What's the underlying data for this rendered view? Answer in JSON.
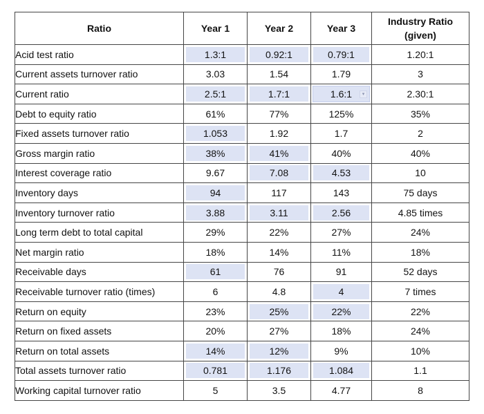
{
  "headers": [
    "Ratio",
    "Year 1",
    "Year 2",
    "Year 3",
    "Industry Ratio (given)"
  ],
  "rows": [
    {
      "name": "Acid test ratio",
      "y1": "1.3:1",
      "y2": "0.92:1",
      "y3": "0.79:1",
      "ind": "1.20:1"
    },
    {
      "name": "Current assets turnover ratio",
      "y1": "3.03",
      "y2": "1.54",
      "y3": "1.79",
      "ind": "3"
    },
    {
      "name": "Current ratio",
      "y1": "2.5:1",
      "y2": "1.7:1",
      "y3": "1.6:1",
      "ind": "2.30:1"
    },
    {
      "name": "Debt to equity ratio",
      "y1": "61%",
      "y2": "77%",
      "y3": "125%",
      "ind": "35%"
    },
    {
      "name": "Fixed assets turnover ratio",
      "y1": "1.053",
      "y2": "1.92",
      "y3": "1.7",
      "ind": "2"
    },
    {
      "name": "Gross margin ratio",
      "y1": "38%",
      "y2": "41%",
      "y3": "40%",
      "ind": "40%"
    },
    {
      "name": "Interest coverage ratio",
      "y1": "9.67",
      "y2": "7.08",
      "y3": "4.53",
      "ind": "10"
    },
    {
      "name": "Inventory days",
      "y1": "94",
      "y2": "117",
      "y3": "143",
      "ind": "75 days"
    },
    {
      "name": "Inventory turnover ratio",
      "y1": "3.88",
      "y2": "3.11",
      "y3": "2.56",
      "ind": "4.85 times"
    },
    {
      "name": "Long term debt to total capital",
      "y1": "29%",
      "y2": "22%",
      "y3": "27%",
      "ind": "24%"
    },
    {
      "name": "Net margin ratio",
      "y1": "18%",
      "y2": "14%",
      "y3": "11%",
      "ind": "18%"
    },
    {
      "name": "Receivable days",
      "y1": "61",
      "y2": "76",
      "y3": "91",
      "ind": "52 days"
    },
    {
      "name": "Receivable turnover ratio (times)",
      "y1": "6",
      "y2": "4.8",
      "y3": "4",
      "ind": "7 times"
    },
    {
      "name": "Return on equity",
      "y1": "23%",
      "y2": "25%",
      "y3": "22%",
      "ind": "22%"
    },
    {
      "name": "Return on fixed assets",
      "y1": "20%",
      "y2": "27%",
      "y3": "18%",
      "ind": "24%"
    },
    {
      "name": "Return on total assets",
      "y1": "14%",
      "y2": "12%",
      "y3": "9%",
      "ind": "10%"
    },
    {
      "name": "Total assets turnover ratio",
      "y1": "0.781",
      "y2": "1.176",
      "y3": "1.084",
      "ind": "1.1"
    },
    {
      "name": "Working capital turnover ratio",
      "y1": "5",
      "y2": "3.5",
      "y3": "4.77",
      "ind": "8"
    }
  ],
  "highlight_color": "#dde3f4",
  "dropdown_icon": "chevron-down-icon"
}
